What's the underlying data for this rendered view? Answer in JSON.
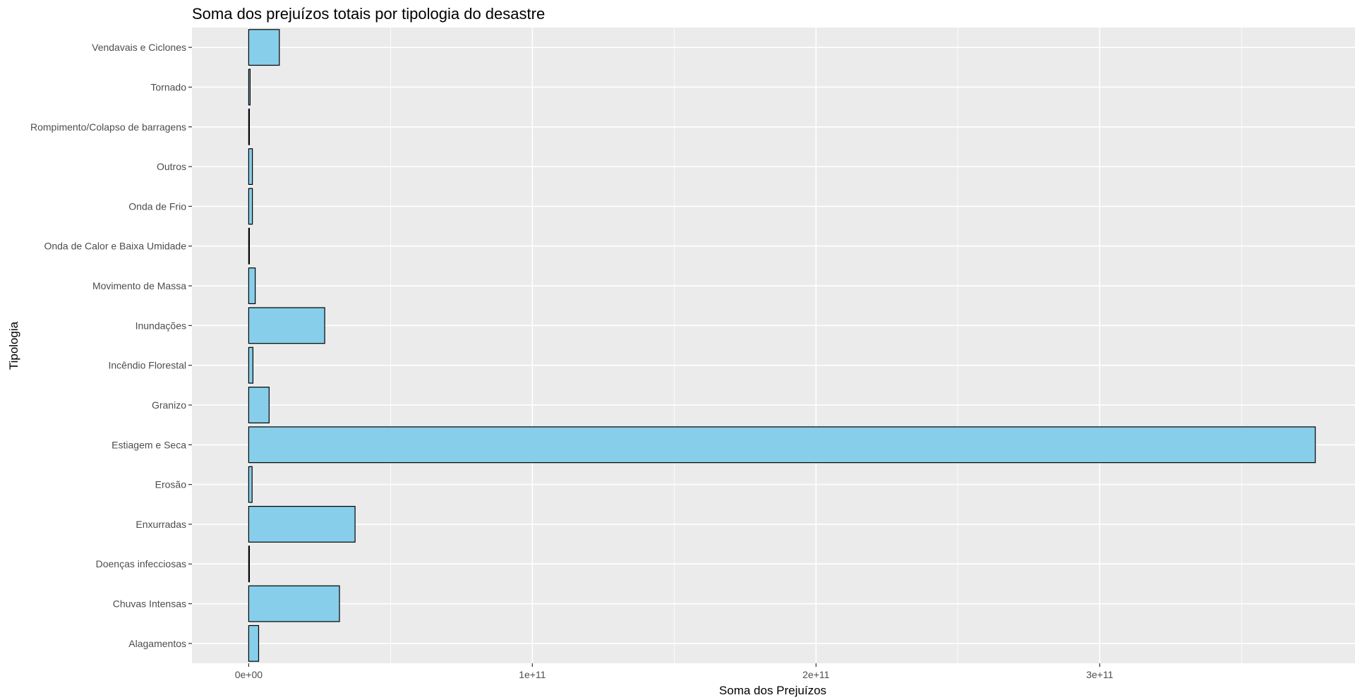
{
  "chart_data": {
    "type": "bar",
    "orientation": "horizontal",
    "title": "Soma dos prejuízos totais por tipologia do desastre",
    "xlabel": "Soma dos Prejuízos",
    "ylabel": "Tipologia",
    "categories": [
      "Alagamentos",
      "Chuvas Intensas",
      "Doenças infecciosas",
      "Enxurradas",
      "Erosão",
      "Estiagem e Seca",
      "Granizo",
      "Incêndio Florestal",
      "Inundações",
      "Movimento de Massa",
      "Onda de Calor e Baixa Umidade",
      "Onda de Frio",
      "Outros",
      "Rompimento/Colapso de barragens",
      "Tornado",
      "Vendavais e Ciclones"
    ],
    "values": [
      3500000000.0,
      32000000000.0,
      200000000.0,
      37500000000.0,
      1200000000.0,
      376000000000.0,
      7200000000.0,
      1500000000.0,
      26800000000.0,
      2300000000.0,
      200000000.0,
      1300000000.0,
      1300000000.0,
      100000000.0,
      500000000.0,
      10800000000.0
    ],
    "xlim": [
      -20000000000.0,
      390000000000.0
    ],
    "x_ticks": [
      0,
      100000000000.0,
      200000000000.0,
      300000000000.0
    ],
    "x_tick_labels": [
      "0e+00",
      "1e+11",
      "2e+11",
      "3e+11"
    ],
    "grid": true,
    "colors": {
      "bar_fill": "#87CEEB",
      "bar_stroke": "#000000",
      "panel_background": "#EBEBEB",
      "grid_major": "#FFFFFF"
    }
  }
}
